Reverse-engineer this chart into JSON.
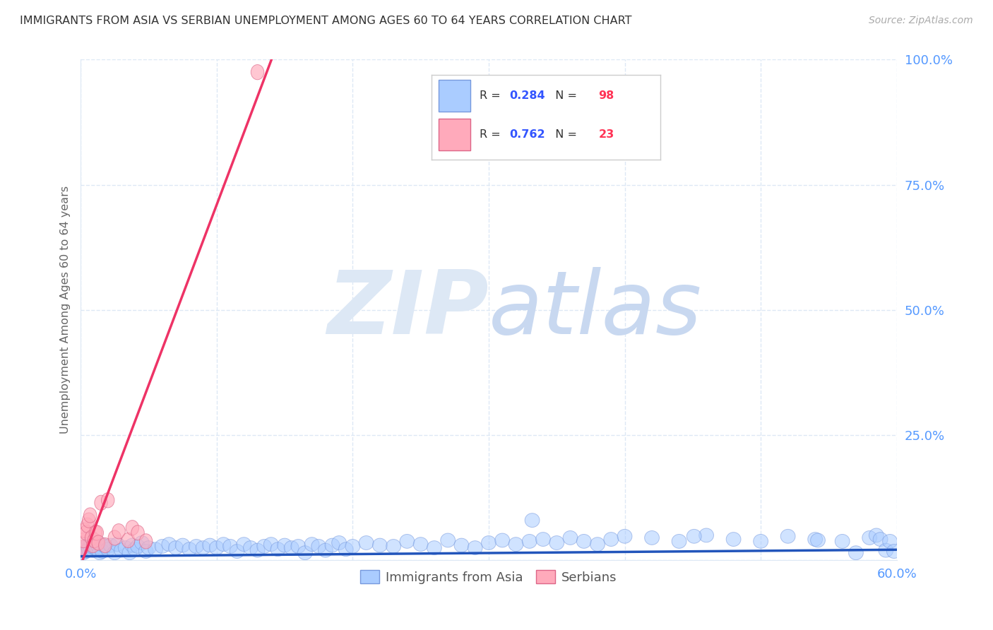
{
  "title": "IMMIGRANTS FROM ASIA VS SERBIAN UNEMPLOYMENT AMONG AGES 60 TO 64 YEARS CORRELATION CHART",
  "source": "Source: ZipAtlas.com",
  "ylabel": "Unemployment Among Ages 60 to 64 years",
  "background_color": "#ffffff",
  "grid_color": "#dde8f5",
  "title_color": "#333333",
  "axis_color": "#5599ff",
  "watermark_zip_color": "#dde8f5",
  "watermark_atlas_color": "#c8d8f0",
  "series": [
    {
      "name": "Immigrants from Asia",
      "color": "#aaccff",
      "edge_color": "#7799dd",
      "R": 0.284,
      "N": 98,
      "line_color": "#2255bb",
      "line_slope": 0.022,
      "line_intercept": 0.008
    },
    {
      "name": "Serbians",
      "color": "#ffaabb",
      "edge_color": "#dd6688",
      "R": 0.762,
      "N": 23,
      "line_color": "#ee3366",
      "line_slope": 7.2,
      "line_intercept": -0.01
    }
  ],
  "legend_R_color": "#3355ff",
  "legend_N_color": "#ff3355",
  "asia_points_x": [
    0.001,
    0.002,
    0.003,
    0.004,
    0.005,
    0.006,
    0.007,
    0.008,
    0.009,
    0.01,
    0.011,
    0.012,
    0.013,
    0.014,
    0.015,
    0.016,
    0.018,
    0.02,
    0.022,
    0.025,
    0.027,
    0.03,
    0.033,
    0.036,
    0.038,
    0.04,
    0.042,
    0.045,
    0.048,
    0.05,
    0.055,
    0.06,
    0.065,
    0.07,
    0.075,
    0.08,
    0.085,
    0.09,
    0.095,
    0.1,
    0.105,
    0.11,
    0.115,
    0.12,
    0.125,
    0.13,
    0.135,
    0.14,
    0.145,
    0.15,
    0.155,
    0.16,
    0.165,
    0.17,
    0.175,
    0.18,
    0.185,
    0.19,
    0.195,
    0.2,
    0.21,
    0.22,
    0.23,
    0.24,
    0.25,
    0.26,
    0.27,
    0.28,
    0.29,
    0.3,
    0.31,
    0.32,
    0.33,
    0.34,
    0.35,
    0.36,
    0.37,
    0.38,
    0.39,
    0.4,
    0.42,
    0.44,
    0.46,
    0.48,
    0.5,
    0.52,
    0.54,
    0.56,
    0.57,
    0.58,
    0.585,
    0.588,
    0.592,
    0.595,
    0.598,
    0.542,
    0.451,
    0.332
  ],
  "asia_points_y": [
    0.02,
    0.015,
    0.025,
    0.018,
    0.03,
    0.022,
    0.028,
    0.035,
    0.02,
    0.025,
    0.03,
    0.022,
    0.028,
    0.015,
    0.032,
    0.018,
    0.028,
    0.022,
    0.03,
    0.015,
    0.032,
    0.02,
    0.025,
    0.015,
    0.03,
    0.022,
    0.028,
    0.035,
    0.018,
    0.025,
    0.022,
    0.028,
    0.032,
    0.025,
    0.03,
    0.022,
    0.028,
    0.025,
    0.03,
    0.025,
    0.032,
    0.028,
    0.018,
    0.032,
    0.025,
    0.02,
    0.028,
    0.032,
    0.022,
    0.03,
    0.025,
    0.028,
    0.015,
    0.032,
    0.028,
    0.02,
    0.03,
    0.035,
    0.022,
    0.028,
    0.035,
    0.03,
    0.028,
    0.038,
    0.032,
    0.025,
    0.04,
    0.03,
    0.025,
    0.035,
    0.04,
    0.032,
    0.038,
    0.042,
    0.035,
    0.045,
    0.038,
    0.032,
    0.042,
    0.048,
    0.045,
    0.038,
    0.05,
    0.042,
    0.038,
    0.048,
    0.042,
    0.038,
    0.015,
    0.045,
    0.05,
    0.042,
    0.02,
    0.038,
    0.018,
    0.04,
    0.048,
    0.08
  ],
  "serbian_points_x": [
    0.001,
    0.002,
    0.003,
    0.004,
    0.005,
    0.006,
    0.007,
    0.008,
    0.009,
    0.01,
    0.011,
    0.012,
    0.013,
    0.015,
    0.018,
    0.02,
    0.025,
    0.028,
    0.035,
    0.038,
    0.042,
    0.048,
    0.13
  ],
  "serbian_points_y": [
    0.025,
    0.04,
    0.06,
    0.055,
    0.07,
    0.08,
    0.09,
    0.045,
    0.03,
    0.04,
    0.055,
    0.055,
    0.035,
    0.115,
    0.03,
    0.12,
    0.045,
    0.058,
    0.04,
    0.065,
    0.055,
    0.038,
    0.975
  ]
}
